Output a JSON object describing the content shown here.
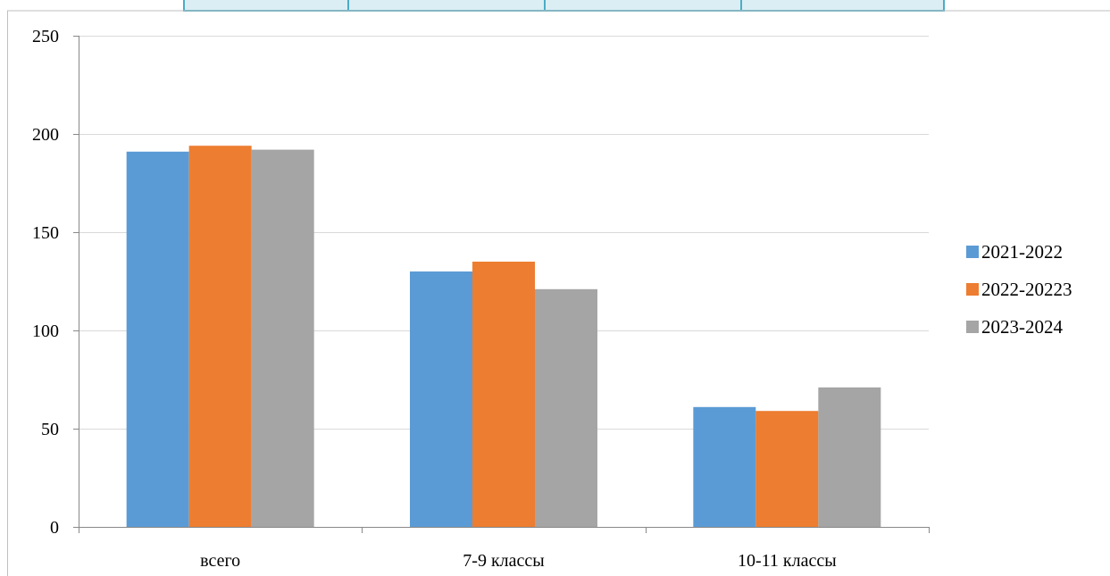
{
  "chart_data": {
    "type": "bar",
    "title": "",
    "xlabel": "",
    "ylabel": "",
    "categories": [
      "всего",
      "7-9 классы",
      "10-11 классы"
    ],
    "series": [
      {
        "name": "2021-2022",
        "color": "#5b9bd5",
        "values": [
          191,
          130,
          61
        ]
      },
      {
        "name": "2022-20223",
        "color": "#ed7d31",
        "values": [
          194,
          135,
          59
        ]
      },
      {
        "name": "2023-2024",
        "color": "#a5a5a5",
        "values": [
          192,
          121,
          71
        ]
      }
    ],
    "ylim": [
      0,
      250
    ],
    "yticks": [
      0,
      50,
      100,
      150,
      200,
      250
    ],
    "grid": true,
    "legend_position": "right"
  },
  "colors": {
    "gridline": "#d9d9d9",
    "axis": "#888888",
    "header_cell_fill": "#dbeef4",
    "header_cell_border": "#4bacc6"
  }
}
